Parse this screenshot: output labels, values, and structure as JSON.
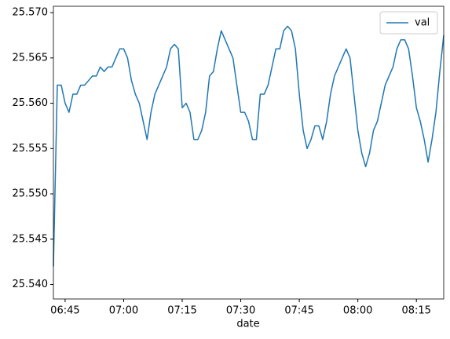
{
  "chart_data": {
    "type": "line",
    "x": [
      "06:42",
      "06:43",
      "06:44",
      "06:45",
      "06:46",
      "06:47",
      "06:48",
      "06:49",
      "06:50",
      "06:51",
      "06:52",
      "06:53",
      "06:54",
      "06:55",
      "06:56",
      "06:57",
      "06:58",
      "06:59",
      "07:00",
      "07:01",
      "07:02",
      "07:03",
      "07:04",
      "07:05",
      "07:06",
      "07:07",
      "07:08",
      "07:09",
      "07:10",
      "07:11",
      "07:12",
      "07:13",
      "07:14",
      "07:15",
      "07:16",
      "07:17",
      "07:18",
      "07:19",
      "07:20",
      "07:21",
      "07:22",
      "07:23",
      "07:24",
      "07:25",
      "07:26",
      "07:27",
      "07:28",
      "07:29",
      "07:30",
      "07:31",
      "07:32",
      "07:33",
      "07:34",
      "07:35",
      "07:36",
      "07:37",
      "07:38",
      "07:39",
      "07:40",
      "07:41",
      "07:42",
      "07:43",
      "07:44",
      "07:45",
      "07:46",
      "07:47",
      "07:48",
      "07:49",
      "07:50",
      "07:51",
      "07:52",
      "07:53",
      "07:54",
      "07:55",
      "07:56",
      "07:57",
      "07:58",
      "07:59",
      "08:00",
      "08:01",
      "08:02",
      "08:03",
      "08:04",
      "08:05",
      "08:06",
      "08:07",
      "08:08",
      "08:09",
      "08:10",
      "08:11",
      "08:12",
      "08:13",
      "08:14",
      "08:15",
      "08:16",
      "08:17",
      "08:18",
      "08:19",
      "08:20",
      "08:21",
      "08:22"
    ],
    "series": [
      {
        "name": "val",
        "color": "#1f77b4",
        "values": [
          25.542,
          25.562,
          25.562,
          25.56,
          25.559,
          25.561,
          25.561,
          25.562,
          25.562,
          25.5625,
          25.563,
          25.563,
          25.564,
          25.5635,
          25.564,
          25.564,
          25.565,
          25.566,
          25.566,
          25.565,
          25.5625,
          25.561,
          25.56,
          25.558,
          25.556,
          25.559,
          25.561,
          25.562,
          25.563,
          25.564,
          25.566,
          25.5665,
          25.566,
          25.5595,
          25.56,
          25.559,
          25.556,
          25.556,
          25.557,
          25.559,
          25.563,
          25.5635,
          25.566,
          25.568,
          25.567,
          25.566,
          25.565,
          25.562,
          25.559,
          25.559,
          25.558,
          25.556,
          25.556,
          25.561,
          25.561,
          25.562,
          25.564,
          25.566,
          25.566,
          25.568,
          25.5685,
          25.568,
          25.566,
          25.561,
          25.557,
          25.555,
          25.556,
          25.5575,
          25.5575,
          25.556,
          25.558,
          25.561,
          25.563,
          25.564,
          25.565,
          25.566,
          25.565,
          25.561,
          25.557,
          25.5545,
          25.553,
          25.5545,
          25.557,
          25.558,
          25.56,
          25.562,
          25.563,
          25.564,
          25.566,
          25.567,
          25.567,
          25.566,
          25.563,
          25.5595,
          25.558,
          25.556,
          25.5535,
          25.556,
          25.559,
          25.5635,
          25.5675
        ]
      }
    ],
    "xlim": [
      "06:42",
      "08:22"
    ],
    "xticks": [
      "06:45",
      "07:00",
      "07:15",
      "07:30",
      "07:45",
      "08:00",
      "08:15"
    ],
    "ylim": [
      25.5384,
      25.5707
    ],
    "yticks": [
      {
        "value": 25.54,
        "label": "25.540"
      },
      {
        "value": 25.545,
        "label": "25.545"
      },
      {
        "value": 25.55,
        "label": "25.550"
      },
      {
        "value": 25.555,
        "label": "25.555"
      },
      {
        "value": 25.56,
        "label": "25.560"
      },
      {
        "value": 25.565,
        "label": "25.565"
      },
      {
        "value": 25.57,
        "label": "25.570"
      }
    ],
    "x_label": "date",
    "legend": "upper-right",
    "grid": false
  }
}
